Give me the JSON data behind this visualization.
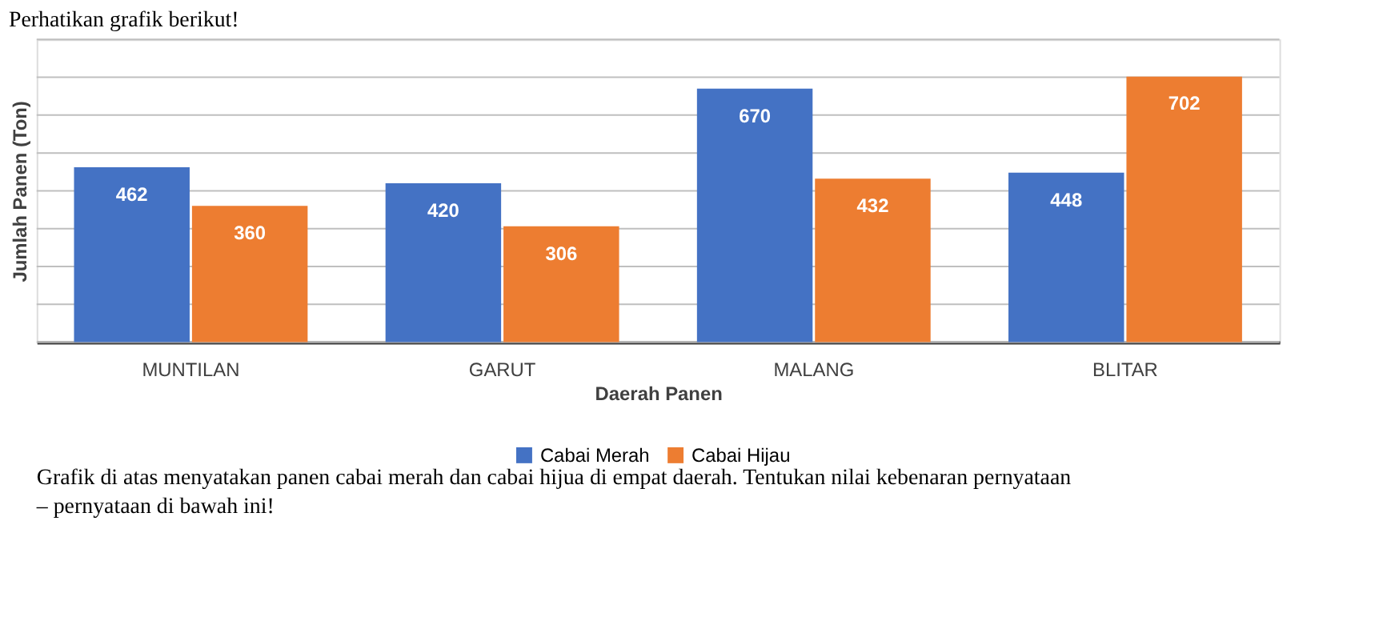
{
  "chart_data": {
    "type": "bar",
    "title": "Perhatikan grafik berikut!",
    "xlabel": "Daerah Panen",
    "ylabel": "Jumlah Panen (Ton)",
    "categories": [
      "MUNTILAN",
      "GARUT",
      "MALANG",
      "BLITAR"
    ],
    "series": [
      {
        "name": "Cabai Merah",
        "color": "#4472c4",
        "values": [
          462,
          420,
          670,
          448
        ]
      },
      {
        "name": "Cabai Hijau",
        "color": "#ed7d31",
        "values": [
          360,
          306,
          432,
          702
        ]
      }
    ],
    "ylim": [
      0,
      800
    ],
    "yticks": [
      {
        "value": 0,
        "label": null
      },
      {
        "value": 100,
        "label": null
      },
      {
        "value": 200,
        "label": null
      },
      {
        "value": 300,
        "label": null
      },
      {
        "value": 400,
        "label": null
      },
      {
        "value": 500,
        "label": null
      },
      {
        "value": 600,
        "label": null
      },
      {
        "value": 700,
        "label": null
      },
      {
        "value": 800,
        "label": null
      }
    ],
    "grid": "y",
    "tick_labels": "x",
    "data_labels": true,
    "legend": "bottom",
    "annotations": [
      "Grafik di atas menyatakan panen cabai merah dan cabai hijua di empat daerah. Tentukan nilai kebenaran pernyataan – pernyataan di bawah ini!"
    ]
  }
}
